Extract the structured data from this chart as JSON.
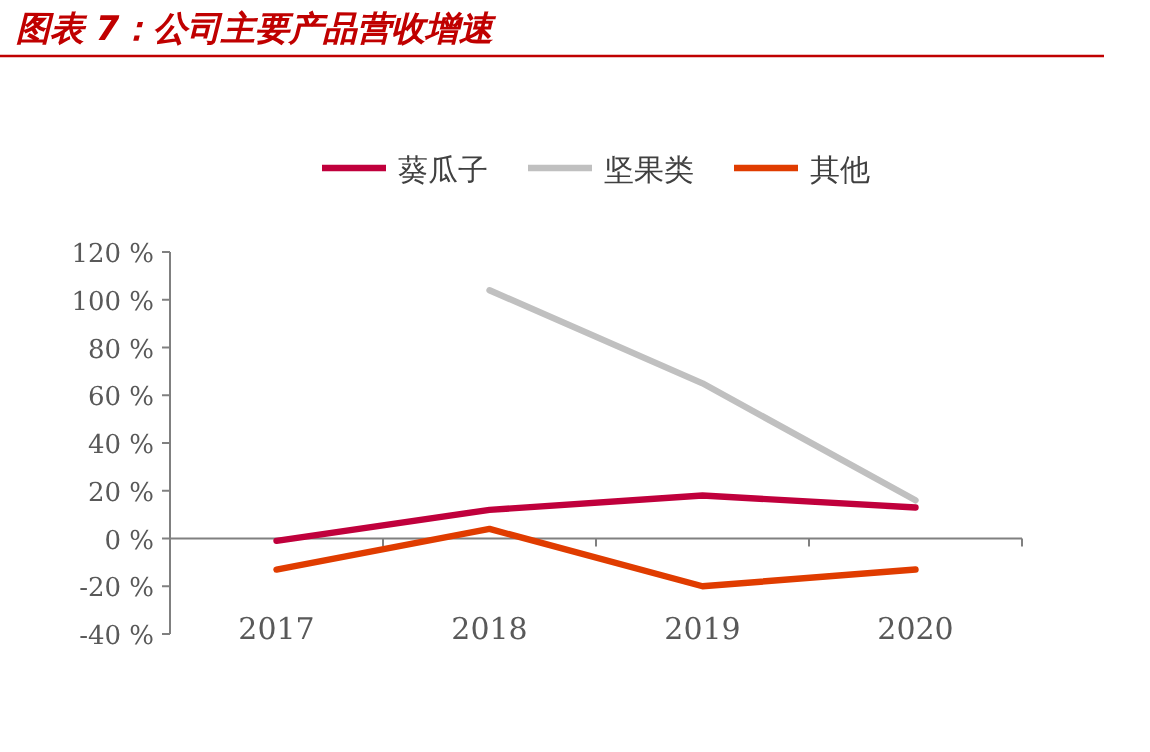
{
  "chart_data": {
    "type": "line",
    "title": "图表 7：公司主要产品营收增速",
    "categories": [
      "2017",
      "2018",
      "2019",
      "2020"
    ],
    "series": [
      {
        "name": "葵瓜子",
        "color": "#c0003c",
        "values": [
          -1,
          12,
          18,
          13
        ]
      },
      {
        "name": "坚果类",
        "color": "#c0c0c0",
        "values": [
          null,
          104,
          65,
          16
        ]
      },
      {
        "name": "其他",
        "color": "#e03c00",
        "values": [
          -13,
          4,
          -20,
          -13
        ]
      }
    ],
    "ylim": [
      -40,
      120
    ],
    "yticks": [
      {
        "value": -40,
        "label": "-40 %"
      },
      {
        "value": -20,
        "label": "-20 %"
      },
      {
        "value": 0,
        "label": "0 %"
      },
      {
        "value": 20,
        "label": "20 %"
      },
      {
        "value": 40,
        "label": "40 %"
      },
      {
        "value": 60,
        "label": "60 %"
      },
      {
        "value": 80,
        "label": "80 %"
      },
      {
        "value": 100,
        "label": "100 %"
      },
      {
        "value": 120,
        "label": "120 %"
      }
    ],
    "grid": false,
    "legend": "top",
    "marker": "none",
    "line_style": "solid"
  }
}
